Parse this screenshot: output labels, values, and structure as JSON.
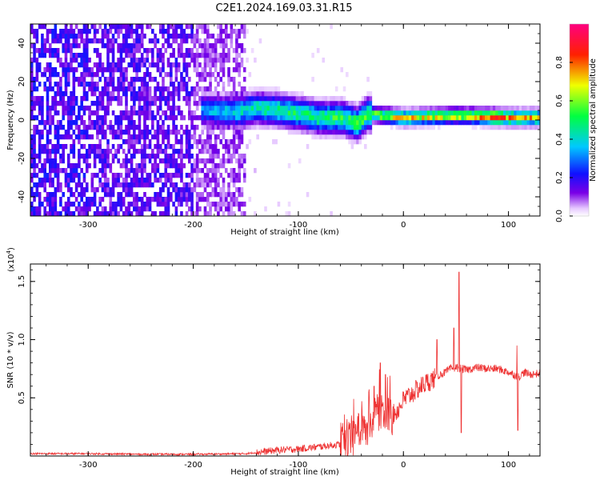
{
  "title": "C2E1.2024.169.03.31.R15",
  "colorbar": {
    "label": "Normalized spectral amplitude",
    "ticks": [
      "0.0",
      "0.2",
      "0.4",
      "0.6",
      "0.8"
    ],
    "tick_values": [
      0.0,
      0.2,
      0.4,
      0.6,
      0.8
    ],
    "range": [
      0,
      1
    ]
  },
  "chart_data": [
    {
      "type": "heatmap",
      "xlabel": "Height of straight line (km)",
      "ylabel": "Frequency (Hz)",
      "xlim": [
        -355,
        130
      ],
      "ylim": [
        -50,
        50
      ],
      "x_ticks": [
        "-300",
        "-200",
        "-100",
        "0",
        "100"
      ],
      "x_tick_values": [
        -300,
        -200,
        -100,
        0,
        100
      ],
      "y_ticks": [
        "40",
        "20",
        "0",
        "-20",
        "-40"
      ],
      "y_tick_values": [
        40,
        20,
        0,
        -20,
        -40
      ],
      "colormap": "rainbow (white -> purple -> blue -> cyan -> green -> yellow -> red -> magenta)",
      "description_points": {
        "band_center_hz": [
          [
            -190,
            4
          ],
          [
            -160,
            3
          ],
          [
            -140,
            5
          ],
          [
            -120,
            4
          ],
          [
            -100,
            2
          ],
          [
            -80,
            0
          ],
          [
            -60,
            0
          ],
          [
            -45,
            -3
          ],
          [
            -35,
            2
          ],
          [
            -20,
            1
          ],
          [
            0,
            0
          ],
          [
            50,
            1
          ],
          [
            100,
            0
          ],
          [
            130,
            0
          ]
        ],
        "band_peak_amplitude": [
          [
            -190,
            0.35
          ],
          [
            -150,
            0.45
          ],
          [
            -120,
            0.5
          ],
          [
            -90,
            0.5
          ],
          [
            -60,
            0.55
          ],
          [
            -30,
            0.6
          ],
          [
            0,
            0.75
          ],
          [
            30,
            0.7
          ],
          [
            60,
            0.7
          ],
          [
            85,
            0.95
          ],
          [
            110,
            0.75
          ],
          [
            130,
            0.75
          ]
        ]
      }
    },
    {
      "type": "line",
      "xlabel": "Height of straight line (km)",
      "ylabel": "SNR (10 * v/v)",
      "y_multiplier": "(x10^4)",
      "y_multiplier_base": "(x10",
      "y_multiplier_exp": "4",
      "y_multiplier_close": ")",
      "xlim": [
        -355,
        130
      ],
      "ylim": [
        0,
        1.65
      ],
      "x_ticks": [
        "-300",
        "-200",
        "-100",
        "0",
        "100"
      ],
      "x_tick_values": [
        -300,
        -200,
        -100,
        0,
        100
      ],
      "y_ticks": [
        "0.5",
        "1.0",
        "1.5"
      ],
      "y_tick_values": [
        0.5,
        1.0,
        1.5
      ],
      "color": "#ee3333",
      "series": [
        {
          "x": [
            -355,
            -300,
            -250,
            -200,
            -150,
            -120,
            -100,
            -80,
            -60,
            -50,
            -45,
            -40,
            -35,
            -30,
            -25,
            -20,
            -15,
            -10,
            -5,
            0,
            10,
            20,
            30,
            35,
            40,
            45,
            50,
            55,
            60,
            70,
            80,
            90,
            100,
            105,
            110,
            115,
            120,
            130
          ],
          "y": [
            0.02,
            0.02,
            0.015,
            0.015,
            0.02,
            0.05,
            0.06,
            0.08,
            0.1,
            0.12,
            0.18,
            0.25,
            0.22,
            0.3,
            0.38,
            0.42,
            0.36,
            0.35,
            0.4,
            0.48,
            0.55,
            0.62,
            0.67,
            0.7,
            0.72,
            0.75,
            0.76,
            0.75,
            0.74,
            0.76,
            0.75,
            0.75,
            0.72,
            0.7,
            0.68,
            0.72,
            0.7,
            0.71
          ]
        }
      ],
      "spikes": [
        {
          "x": -33,
          "y": 0.55
        },
        {
          "x": -28,
          "y": 0.6
        },
        {
          "x": -22,
          "y": 0.8
        },
        {
          "x": -17,
          "y": 0.7
        },
        {
          "x": 32,
          "y": 1.0
        },
        {
          "x": 48,
          "y": 1.1
        },
        {
          "x": 53,
          "y": 1.58
        },
        {
          "x": 55,
          "y": 0.2
        },
        {
          "x": 108,
          "y": 0.95
        },
        {
          "x": 109,
          "y": 0.22
        }
      ]
    }
  ]
}
